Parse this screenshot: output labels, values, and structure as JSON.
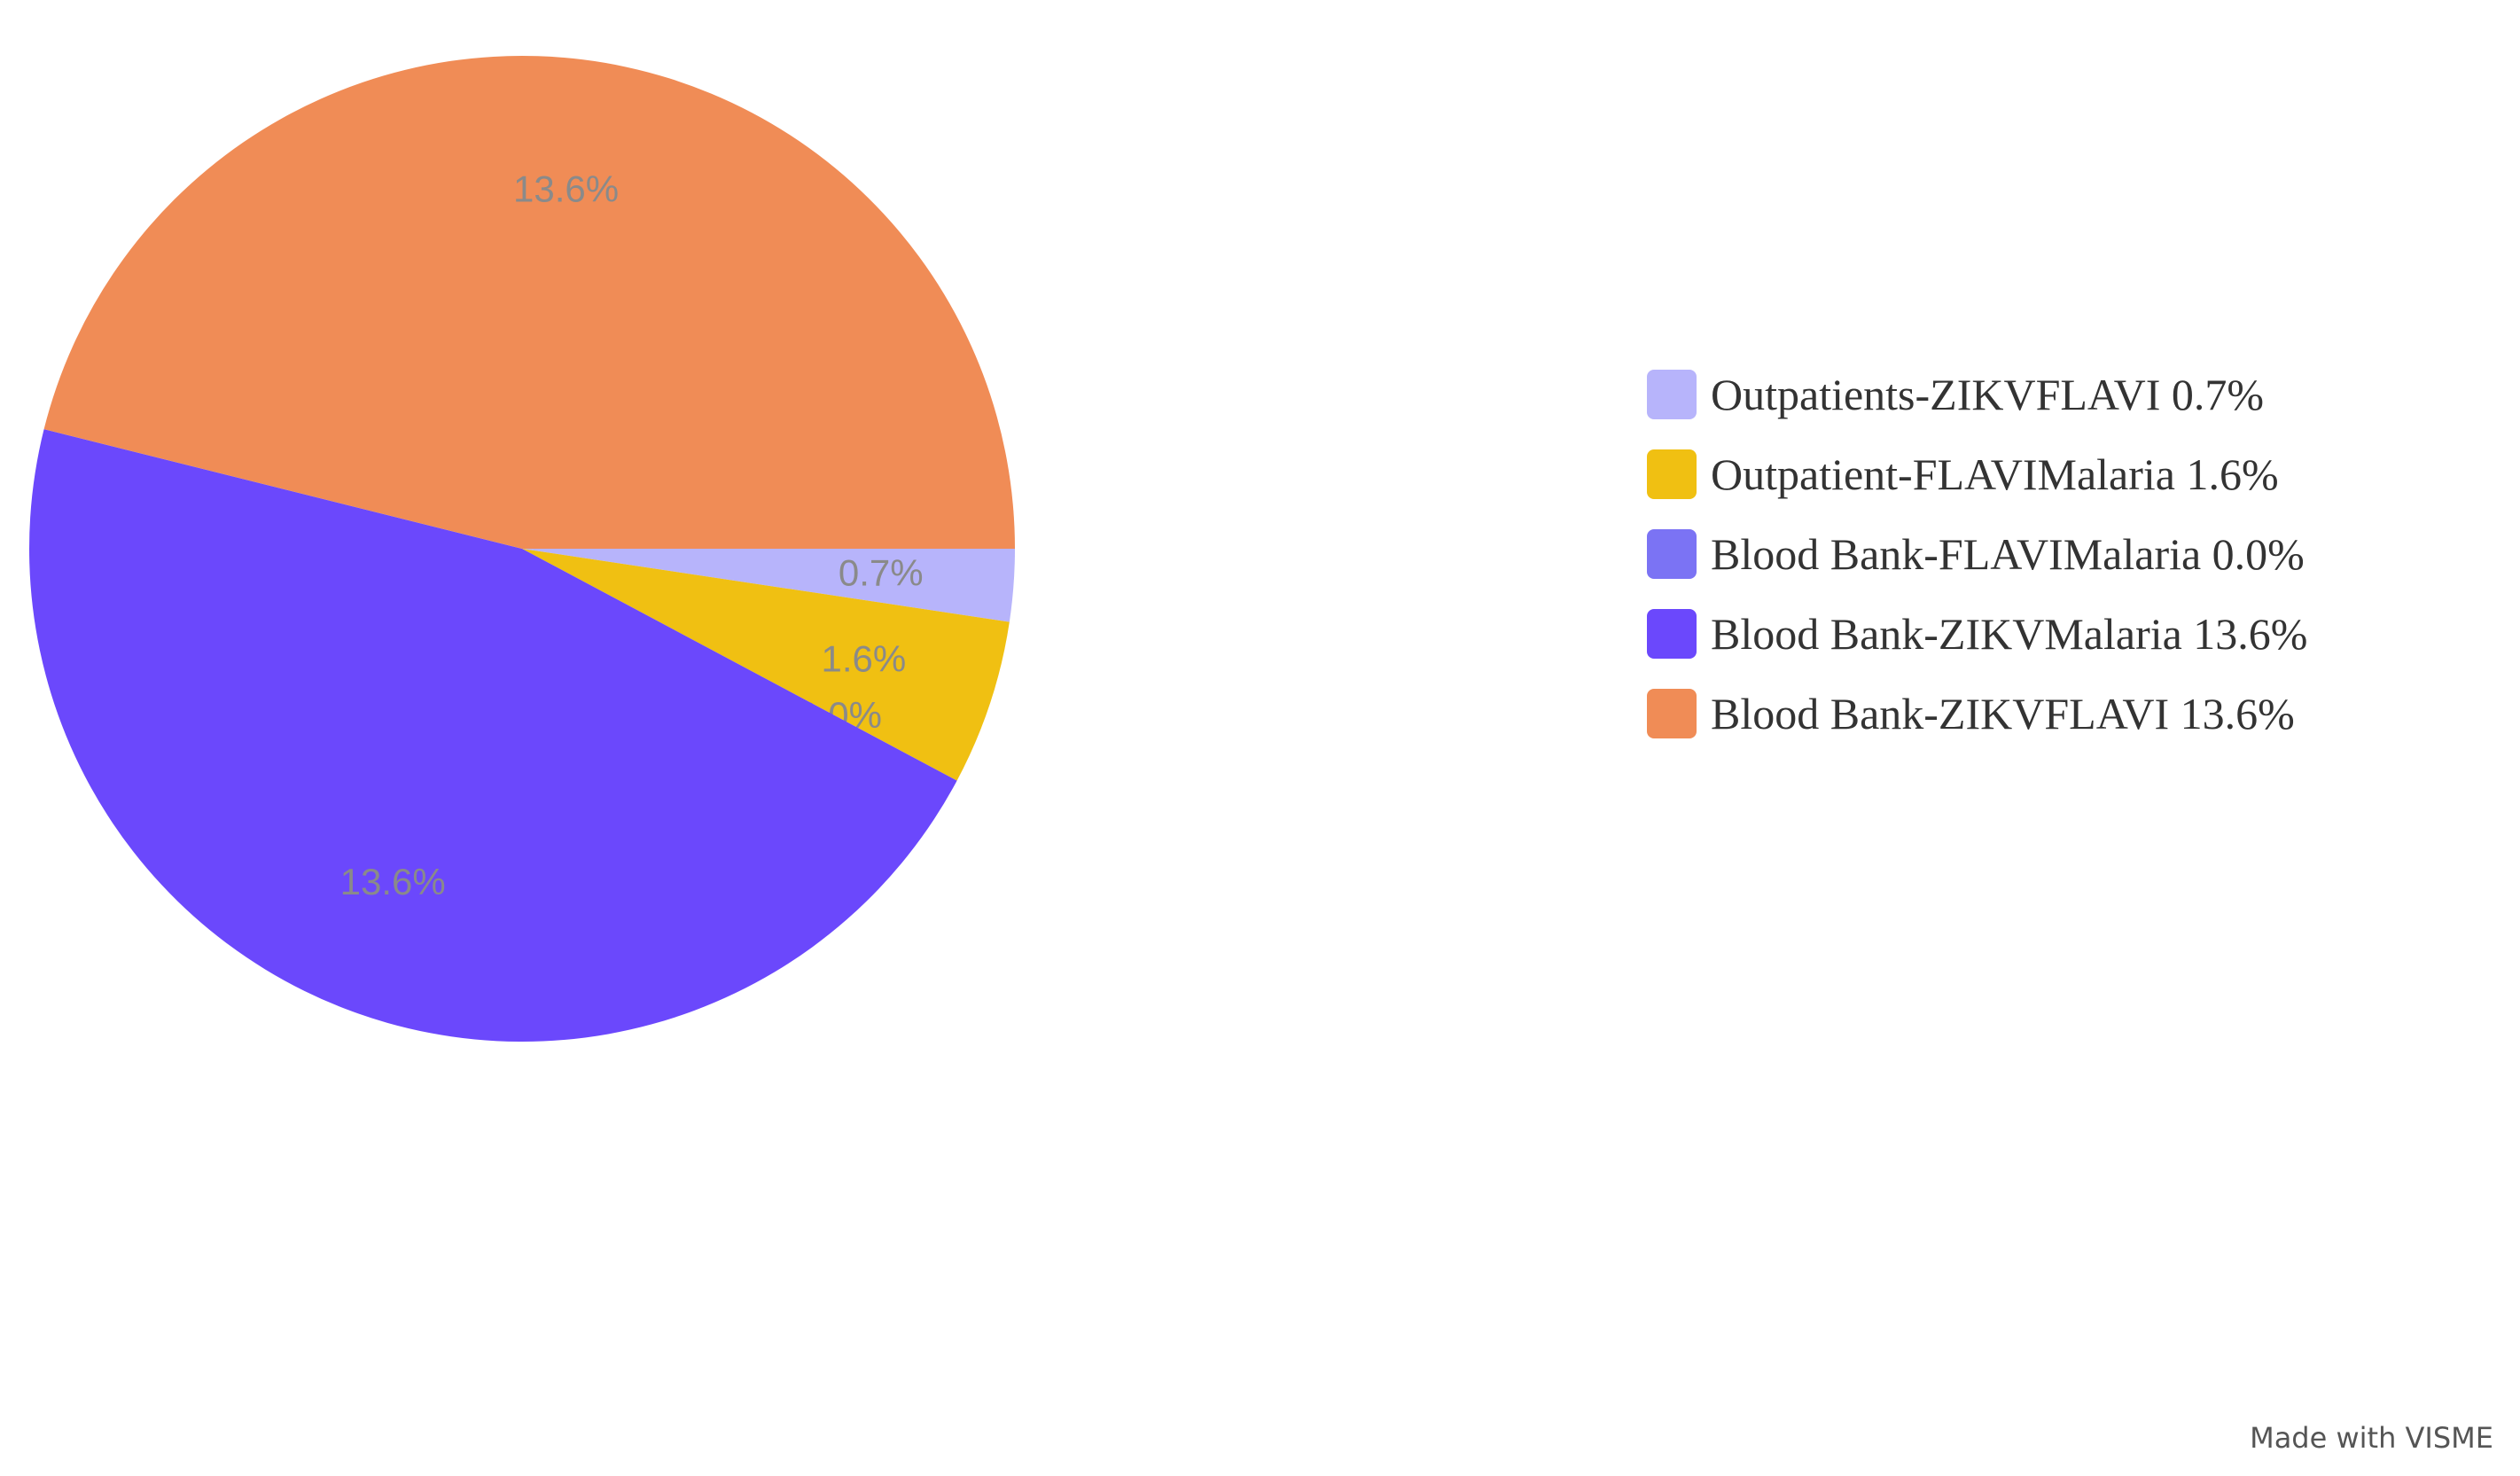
{
  "chart_data": {
    "type": "pie",
    "slices": [
      {
        "name": "Outpatients-ZIKVFLAVI",
        "value": 0.7,
        "label": "0.7%",
        "legend": "Outpatients-ZIKVFLAVI 0.7%",
        "color": "#b7b4fb"
      },
      {
        "name": "Outpatient-FLAVIMalaria",
        "value": 1.6,
        "label": "1.6%",
        "legend": "Outpatient-FLAVIMalaria 1.6%",
        "color": "#f0c012"
      },
      {
        "name": "Blood Bank-FLAVIMalaria",
        "value": 0.0,
        "label": "0.0%",
        "legend": "Blood Bank-FLAVIMalaria 0.0%",
        "color": "#7b73f4"
      },
      {
        "name": "Blood Bank-ZIKVMalaria",
        "value": 13.6,
        "label": "13.6%",
        "legend": "Blood Bank-ZIKVMalaria 13.6%",
        "color": "#6b48fc"
      },
      {
        "name": "Blood Bank-ZIKVFLAVI",
        "value": 13.6,
        "label": "13.6%",
        "legend": "Blood Bank-ZIKVFLAVI 13.6%",
        "color": "#f08c56"
      }
    ],
    "legend_position": "right"
  },
  "watermark": "Made with VISME"
}
